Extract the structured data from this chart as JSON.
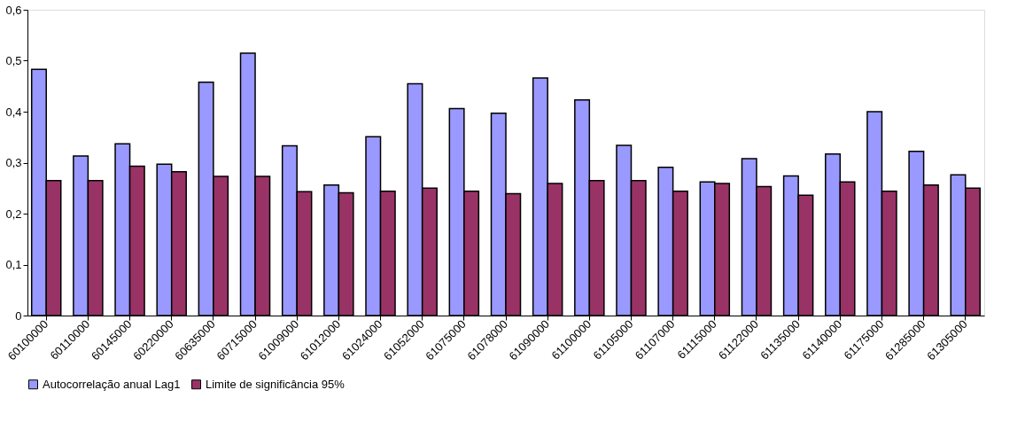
{
  "chart_data": {
    "type": "bar",
    "categories": [
      "60100000",
      "60110000",
      "60145000",
      "60220000",
      "60635000",
      "60715000",
      "61009000",
      "61012000",
      "61024000",
      "61052000",
      "61075000",
      "61078000",
      "61090000",
      "61100000",
      "61105000",
      "61107000",
      "61115000",
      "61122000",
      "61135000",
      "61140000",
      "61175000",
      "61285000",
      "61305000"
    ],
    "series": [
      {
        "name": "Autocorrelação anual Lag1",
        "color": "#9999ff",
        "values": [
          0.483,
          0.313,
          0.337,
          0.297,
          0.458,
          0.515,
          0.333,
          0.256,
          0.351,
          0.455,
          0.406,
          0.397,
          0.466,
          0.423,
          0.334,
          0.291,
          0.262,
          0.308,
          0.274,
          0.317,
          0.4,
          0.322,
          0.276
        ]
      },
      {
        "name": "Limite de significância 95%",
        "color": "#993366",
        "values": [
          0.265,
          0.265,
          0.293,
          0.282,
          0.273,
          0.273,
          0.243,
          0.241,
          0.244,
          0.25,
          0.244,
          0.239,
          0.259,
          0.265,
          0.265,
          0.244,
          0.259,
          0.253,
          0.236,
          0.262,
          0.244,
          0.256,
          0.25
        ]
      }
    ],
    "ylim": [
      0,
      0.6
    ],
    "yticks": [
      {
        "value": 0,
        "label": "0"
      },
      {
        "value": 0.1,
        "label": "0,1"
      },
      {
        "value": 0.2,
        "label": "0,2"
      },
      {
        "value": 0.3,
        "label": "0,3"
      },
      {
        "value": 0.4,
        "label": "0,4"
      },
      {
        "value": 0.5,
        "label": "0,5"
      },
      {
        "value": 0.6,
        "label": "0,6"
      }
    ],
    "grid": false,
    "legend": "bottom"
  }
}
